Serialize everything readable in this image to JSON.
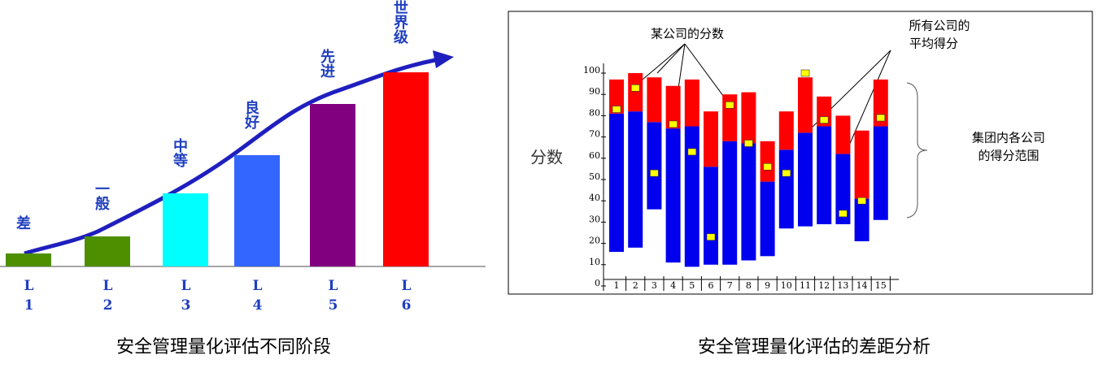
{
  "chart_data": [
    {
      "type": "bar",
      "title": "安全管理量化评估不同阶段",
      "categories": [
        "L1",
        "L2",
        "L3",
        "L4",
        "L5",
        "L6"
      ],
      "stage_labels": [
        "差",
        "一般",
        "中等",
        "良好",
        "先进",
        "世界级"
      ],
      "values": [
        16,
        37,
        90,
        137,
        200,
        239
      ],
      "colors": [
        "#4e8f00",
        "#4e8f00",
        "#00ffff",
        "#3366ff",
        "#800080",
        "#ff0000"
      ],
      "ylim": [
        0,
        250
      ]
    },
    {
      "type": "range-bar",
      "title": "安全管理量化评估的差距分析",
      "ylabel": "分数",
      "categories": [
        "1",
        "2",
        "3",
        "4",
        "5",
        "6",
        "7",
        "8",
        "9",
        "10",
        "11",
        "12",
        "13",
        "14",
        "15"
      ],
      "low": [
        16,
        18,
        36,
        11,
        9,
        10,
        10,
        12,
        14,
        27,
        28,
        29,
        29,
        21,
        31
      ],
      "series": [
        {
          "color": "#0000ee",
          "values": [
            81,
            82,
            77,
            74,
            75,
            56,
            68,
            67,
            49,
            64,
            72,
            75,
            62,
            41,
            75
          ]
        },
        {
          "color": "#ff0000",
          "values": [
            97,
            100,
            98,
            94,
            97,
            82,
            90,
            91,
            68,
            82,
            98,
            89,
            80,
            73,
            97
          ]
        }
      ],
      "marker": {
        "color": "#ffff00",
        "values": [
          83,
          93,
          53,
          76,
          63,
          23,
          85,
          67,
          56,
          53,
          100,
          78,
          34,
          40,
          79
        ]
      },
      "ylim": [
        0,
        100
      ],
      "yticks": [
        0,
        10,
        20,
        30,
        40,
        50,
        60,
        70,
        80,
        90,
        100
      ],
      "annotations": {
        "company_score": "某公司的分数",
        "average": [
          "所有公司的",
          "平均得分"
        ],
        "range": [
          "集团内各公司",
          "的得分范围"
        ]
      }
    }
  ]
}
